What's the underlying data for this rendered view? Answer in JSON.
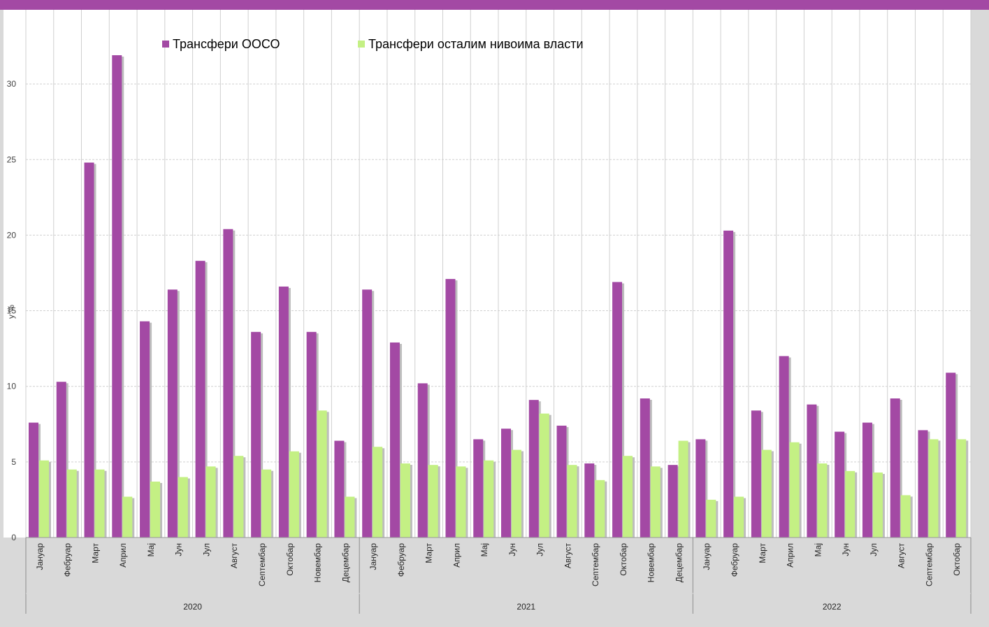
{
  "colors": {
    "ooso": "#a349a4",
    "other": "#c4f084",
    "background_outer": "#d9d9d9",
    "plot_bg": "#ffffff",
    "top_band": "#a349a4"
  },
  "chart_data": {
    "type": "bar",
    "ylabel": "у %",
    "ylim": [
      0,
      35
    ],
    "yticks": [
      0,
      5,
      10,
      15,
      20,
      25,
      30
    ],
    "grid": true,
    "legend_position": "top-left",
    "groups": [
      {
        "year": "2020",
        "months": [
          "Јануар",
          "Фебруар",
          "Март",
          "Април",
          "Мај",
          "Јун",
          "Јул",
          "Август",
          "Септембар",
          "Октобар",
          "Новембар",
          "Децембар"
        ]
      },
      {
        "year": "2021",
        "months": [
          "Јануар",
          "Фебруар",
          "Март",
          "Април",
          "Мај",
          "Јун",
          "Јул",
          "Август",
          "Септембар",
          "Октобар",
          "Новембар",
          "Децембар"
        ]
      },
      {
        "year": "2022",
        "months": [
          "Јануар",
          "Фебруар",
          "Март",
          "Април",
          "Мај",
          "Јун",
          "Јул",
          "Август",
          "Септембар",
          "Октобар"
        ]
      }
    ],
    "series": [
      {
        "name": "Трансфери ООСО",
        "values": [
          7.6,
          10.3,
          24.8,
          31.9,
          14.3,
          16.4,
          18.3,
          20.4,
          13.6,
          16.6,
          13.6,
          6.4,
          16.4,
          12.9,
          10.2,
          17.1,
          6.5,
          7.2,
          9.1,
          7.4,
          4.9,
          16.9,
          9.2,
          4.8,
          6.5,
          20.3,
          8.4,
          12.0,
          8.8,
          7.0,
          7.6,
          9.2,
          7.1,
          10.9
        ]
      },
      {
        "name": "Трансфери осталим нивоима власти",
        "values": [
          5.1,
          4.5,
          4.5,
          2.7,
          3.7,
          4.0,
          4.7,
          5.4,
          4.5,
          5.7,
          8.4,
          2.7,
          6.0,
          4.9,
          4.8,
          4.7,
          5.1,
          5.8,
          8.2,
          4.8,
          3.8,
          5.4,
          4.7,
          6.4,
          2.5,
          2.7,
          5.8,
          6.3,
          4.9,
          4.4,
          4.3,
          2.8,
          6.5,
          6.5
        ]
      }
    ]
  }
}
